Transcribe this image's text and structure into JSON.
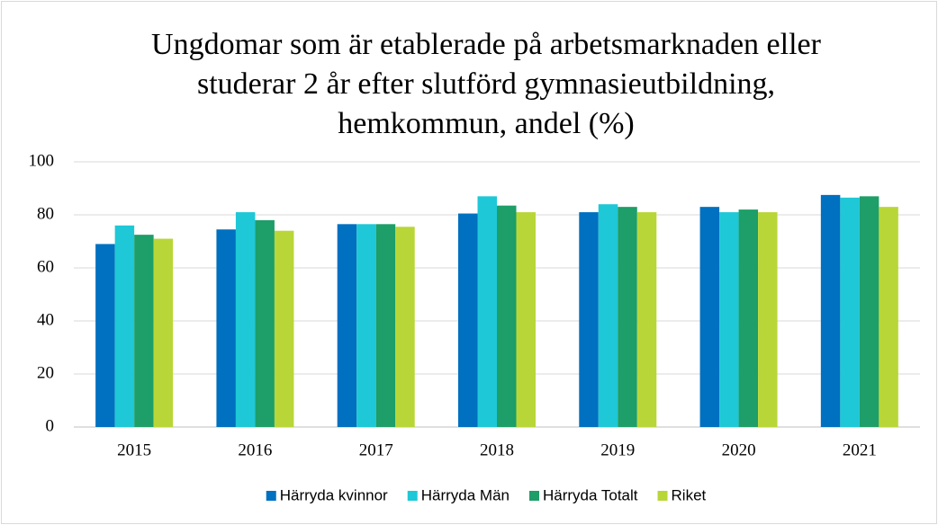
{
  "chart_data": {
    "type": "bar",
    "title": [
      "Ungdomar som är etablerade på arbetsmarknaden eller",
      "studerar 2 år efter slutförd gymnasieutbildning,",
      "hemkommun, andel (%)"
    ],
    "categories": [
      "2015",
      "2016",
      "2017",
      "2018",
      "2019",
      "2020",
      "2021"
    ],
    "series": [
      {
        "name": "Härryda kvinnor",
        "color": "#0070c0",
        "values": [
          69,
          74.5,
          76.5,
          80.5,
          81,
          83,
          87.5
        ]
      },
      {
        "name": "Härryda Män",
        "color": "#1ec8d6",
        "values": [
          76,
          81,
          76.5,
          87,
          84,
          81,
          86.5
        ]
      },
      {
        "name": "Härryda Totalt",
        "color": "#1e9e68",
        "values": [
          72.5,
          78,
          76.5,
          83.5,
          83,
          82,
          87
        ]
      },
      {
        "name": "Riket",
        "color": "#b9d638",
        "values": [
          71,
          74,
          75.5,
          81,
          81,
          81,
          83
        ]
      }
    ],
    "ylim": [
      0,
      100
    ],
    "yticks": [
      0,
      20,
      40,
      60,
      80,
      100
    ],
    "grid": true,
    "legend": "bottom"
  }
}
